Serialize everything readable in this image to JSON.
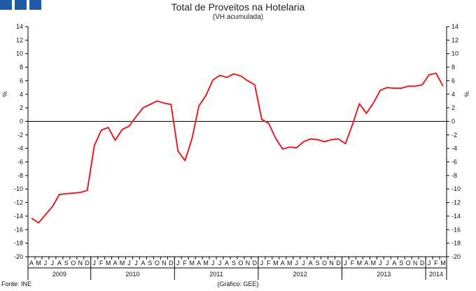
{
  "header": {
    "title": "Total de Proveitos na Hotelaria",
    "subtitle": "(VH acumulada)",
    "logo_color": "#1f5aa8"
  },
  "footer": {
    "source": "Fonte: INE",
    "credit": "(Gráfico: GEE)"
  },
  "chart_data": {
    "type": "line",
    "title": "Total de Proveitos na Hotelaria",
    "subtitle": "(VH acumulada)",
    "ylabel": "%",
    "ylim": [
      -20,
      14
    ],
    "yticks": [
      14,
      12,
      10,
      8,
      6,
      4,
      2,
      0,
      -2,
      -4,
      -6,
      -8,
      -10,
      -12,
      -14,
      -16,
      -18,
      -20
    ],
    "grid": false,
    "line_color": "#e31e24",
    "month_labels": [
      "A",
      "M",
      "J",
      "J",
      "A",
      "S",
      "O",
      "N",
      "D",
      "J",
      "F",
      "M",
      "A",
      "M",
      "J",
      "J",
      "A",
      "S",
      "O",
      "N",
      "D",
      "J",
      "F",
      "M",
      "A",
      "M",
      "J",
      "J",
      "A",
      "S",
      "O",
      "N",
      "D",
      "J",
      "F",
      "M",
      "A",
      "M",
      "J",
      "J",
      "A",
      "S",
      "O",
      "N",
      "D",
      "J",
      "F",
      "M",
      "A",
      "M",
      "J",
      "J",
      "A",
      "S",
      "O",
      "N",
      "D",
      "J",
      "F",
      "M"
    ],
    "year_groups": [
      {
        "label": "2009",
        "months": 9
      },
      {
        "label": "2010",
        "months": 12
      },
      {
        "label": "2011",
        "months": 12
      },
      {
        "label": "2012",
        "months": 12
      },
      {
        "label": "2013",
        "months": 12
      },
      {
        "label": "2014",
        "months": 3
      }
    ],
    "series": [
      {
        "values": [
          -14.3,
          -15.0,
          -13.8,
          -12.6,
          -10.8,
          -10.7,
          -10.6,
          -10.5,
          -10.2,
          -3.6,
          -1.3,
          -0.9,
          -2.8,
          -1.2,
          -0.7,
          0.7,
          2.0,
          2.5,
          3.0,
          2.7,
          2.5,
          -4.4,
          -5.8,
          -2.6,
          2.3,
          3.8,
          6.1,
          6.8,
          6.5,
          7.0,
          6.7,
          6.0,
          5.4,
          0.3,
          -0.3,
          -2.5,
          -4.1,
          -3.8,
          -3.9,
          -3.0,
          -2.6,
          -2.7,
          -3.0,
          -2.7,
          -2.6,
          -3.3,
          -0.5,
          2.6,
          1.2,
          2.7,
          4.6,
          5.0,
          4.9,
          4.9,
          5.2,
          5.2,
          5.4,
          6.9,
          7.1,
          5.2
        ]
      }
    ]
  }
}
